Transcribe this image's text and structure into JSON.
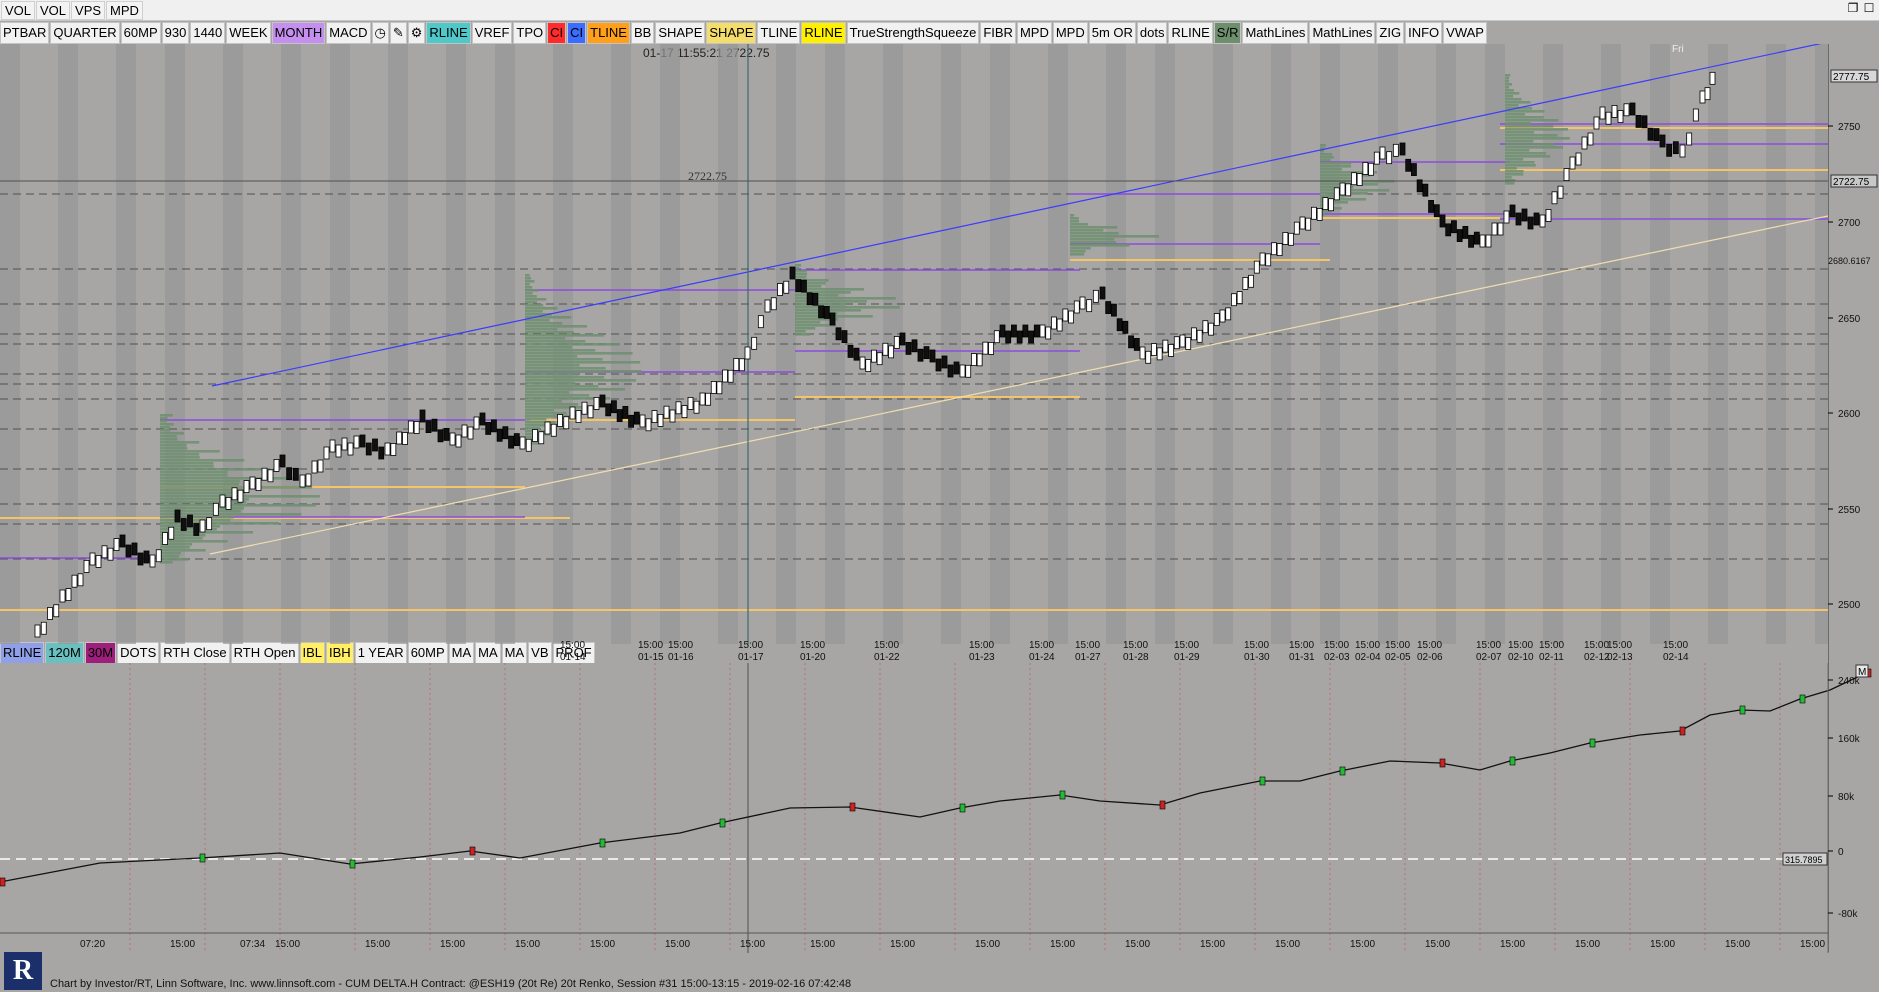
{
  "topbar": {
    "buttons": [
      "VOL",
      "VOL",
      "VPS",
      "MPD"
    ]
  },
  "toolbar": {
    "items": [
      {
        "label": "PTBAR",
        "bg": "#f1f1f1"
      },
      {
        "label": "QUARTER",
        "bg": "#f1f1f1"
      },
      {
        "label": "60MP",
        "bg": "#f1f1f1"
      },
      {
        "label": "930",
        "bg": "#f1f1f1"
      },
      {
        "label": "1440",
        "bg": "#f1f1f1"
      },
      {
        "label": "WEEK",
        "bg": "#f1f1f1"
      },
      {
        "label": "MONTH",
        "bg": "#c58ff0"
      },
      {
        "label": "MACD",
        "bg": "#f1f1f1"
      },
      {
        "label": "◷",
        "bg": "#f1f1f1"
      },
      {
        "label": "✎",
        "bg": "#f1f1f1"
      },
      {
        "label": "⚙",
        "bg": "#f1f1f1"
      },
      {
        "label": "RLINE",
        "bg": "#4ec8c8"
      },
      {
        "label": "VREF",
        "bg": "#f1f1f1"
      },
      {
        "label": "TPO",
        "bg": "#f1f1f1"
      },
      {
        "label": "CI",
        "bg": "#ff2a2a"
      },
      {
        "label": "CI",
        "bg": "#3b6bff"
      },
      {
        "label": "TLINE",
        "bg": "#ff9f1a"
      },
      {
        "label": "BB",
        "bg": "#f1f1f1"
      },
      {
        "label": "SHAPE",
        "bg": "#f1f1f1"
      },
      {
        "label": "SHAPE",
        "bg": "#f5dd6b"
      },
      {
        "label": "TLINE",
        "bg": "#f1f1f1"
      },
      {
        "label": "RLINE",
        "bg": "#ffef00"
      },
      {
        "label": "TrueStrengthSqueeze",
        "bg": "#f1f1f1"
      },
      {
        "label": "FIBR",
        "bg": "#f1f1f1"
      },
      {
        "label": "MPD",
        "bg": "#f1f1f1"
      },
      {
        "label": "MPD",
        "bg": "#f1f1f1"
      },
      {
        "label": "5m OR",
        "bg": "#f1f1f1"
      },
      {
        "label": "dots",
        "bg": "#f1f1f1"
      },
      {
        "label": "RLINE",
        "bg": "#f1f1f1"
      },
      {
        "label": "S/R",
        "bg": "#6e8f6e"
      },
      {
        "label": "MathLines",
        "bg": "#f1f1f1"
      },
      {
        "label": "MathLines",
        "bg": "#f1f1f1"
      },
      {
        "label": "ZIG",
        "bg": "#f1f1f1"
      },
      {
        "label": "INFO",
        "bg": "#f1f1f1"
      },
      {
        "label": "VWAP",
        "bg": "#f1f1f1"
      }
    ]
  },
  "toolbar2": {
    "items": [
      {
        "label": "RLINE",
        "bg": "#8fa0e8"
      },
      {
        "label": "120M",
        "bg": "#6ac0c0"
      },
      {
        "label": "30M",
        "bg": "#9d1f7b"
      },
      {
        "label": "DOTS",
        "bg": "#f1f1f1"
      },
      {
        "label": "RTH Close",
        "bg": "#f1f1f1"
      },
      {
        "label": "RTH Open",
        "bg": "#f1f1f1"
      },
      {
        "label": "IBL",
        "bg": "#ffee66"
      },
      {
        "label": "IBH",
        "bg": "#ffee66"
      },
      {
        "label": "1 YEAR",
        "bg": "#f1f1f1"
      },
      {
        "label": "60MP",
        "bg": "#f1f1f1"
      },
      {
        "label": "MA",
        "bg": "#f1f1f1"
      },
      {
        "label": "MA",
        "bg": "#f1f1f1"
      },
      {
        "label": "MA",
        "bg": "#f1f1f1"
      },
      {
        "label": "VB",
        "bg": "#f1f1f1"
      },
      {
        "label": "PROF",
        "bg": "#f1f1f1"
      }
    ]
  },
  "cursor_info": {
    "time": "01-17 11:55:21",
    "price": "2722.75"
  },
  "price_axis": {
    "ticks": [
      "2750",
      "2700",
      "2650",
      "2600",
      "2550",
      "2500"
    ],
    "current": "2777.75",
    "crosshair": "2722.75",
    "ref": "2680.6167",
    "left_label": "2722.75"
  },
  "time_axis": [
    {
      "time": "15:00",
      "date": "01-14"
    },
    {
      "time": "15:00",
      "date": "01-15"
    },
    {
      "time": "15:00",
      "date": "01-16"
    },
    {
      "time": "15:00",
      "date": "01-17"
    },
    {
      "time": "15:00",
      "date": "01-20"
    },
    {
      "time": "15:00",
      "date": "01-22"
    },
    {
      "time": "15:00",
      "date": "01-23"
    },
    {
      "time": "15:00",
      "date": "01-24"
    },
    {
      "time": "15:00",
      "date": "01-27"
    },
    {
      "time": "15:00",
      "date": "01-28"
    },
    {
      "time": "15:00",
      "date": "01-29"
    },
    {
      "time": "15:00",
      "date": "01-30"
    },
    {
      "time": "15:00",
      "date": "01-31"
    },
    {
      "time": "15:00",
      "date": "02-03"
    },
    {
      "time": "15:00",
      "date": "02-04"
    },
    {
      "time": "15:00",
      "date": "02-05"
    },
    {
      "time": "15:00",
      "date": "02-06"
    },
    {
      "time": "15:00",
      "date": "02-07"
    },
    {
      "time": "15:00",
      "date": "02-10"
    },
    {
      "time": "15:00",
      "date": "02-11"
    },
    {
      "time": "15:00",
      "date": "02-12"
    },
    {
      "time": "15:00",
      "date": "02-13"
    },
    {
      "time": "15:00",
      "date": "02-14"
    }
  ],
  "delta_axis": {
    "ticks": [
      "240k",
      "160k",
      "80k",
      "0",
      "-80k"
    ],
    "current": "315.7895",
    "m": "M"
  },
  "bottom_axis": [
    "07:20",
    "15:00",
    "07:34",
    "15:00",
    "15:00",
    "15:00",
    "15:00",
    "15:00",
    "15:00",
    "15:00",
    "15:00",
    "15:00",
    "15:00",
    "15:00",
    "15:00",
    "15:00",
    "15:00",
    "15:00",
    "15:00",
    "15:00",
    "15:00",
    "15:00",
    "15:00",
    "15:00"
  ],
  "footer": {
    "status": "Chart by Investor/RT, Linn Software, Inc. www.linnsoft.com - CUM DELTA.H Contract: @ESH19 (20t Re) 20t Renko, Session #31 15:00-13:15 - 2019-02-16 07:42:48",
    "logo": "R"
  },
  "fri_label": "Fri"
}
